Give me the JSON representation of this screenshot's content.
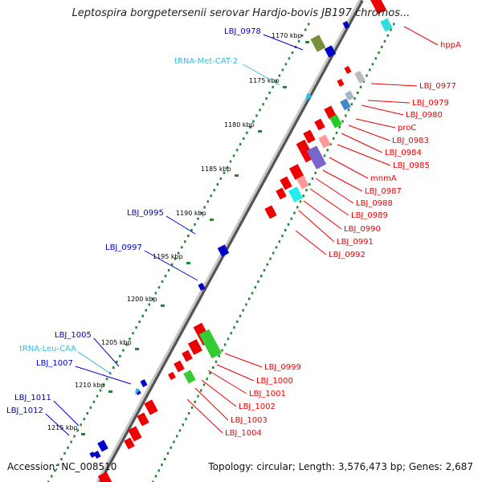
{
  "title": "Leptospira borgpetersenii serovar Hardjo-bovis JB197 chromos...",
  "footer": {
    "accession": "Accession: NC_008510",
    "summary": "Topology: circular; Length: 3,576,473 bp; Genes: 2,687"
  },
  "colors": {
    "backbone": "#999999",
    "forward_gene": "#ee0000",
    "reverse_gene": "#0000cc",
    "trna_label": "#33bbdd",
    "ruler": "#228833"
  },
  "ticks": [
    {
      "label": "1170 kbp"
    },
    {
      "label": "1175 kbp"
    },
    {
      "label": "1180 kbp"
    },
    {
      "label": "1185 kbp"
    },
    {
      "label": "1190 kbp"
    },
    {
      "label": "1195 kbp"
    },
    {
      "label": "1200 kbp"
    },
    {
      "label": "1205 kbp"
    },
    {
      "label": "1210 kbp"
    },
    {
      "label": "1215 kbp"
    }
  ],
  "left_labels": [
    {
      "text": "LBJ_0978",
      "kind": "gene"
    },
    {
      "text": "tRNA-Met-CAT-2",
      "kind": "trna"
    },
    {
      "text": "LBJ_0995",
      "kind": "gene"
    },
    {
      "text": "LBJ_0997",
      "kind": "gene"
    },
    {
      "text": "LBJ_1005",
      "kind": "gene"
    },
    {
      "text": "tRNA-Leu-CAA",
      "kind": "trna"
    },
    {
      "text": "LBJ_1007",
      "kind": "gene"
    },
    {
      "text": "LBJ_1011",
      "kind": "gene"
    },
    {
      "text": "LBJ_1012",
      "kind": "gene"
    }
  ],
  "right_labels": [
    {
      "text": "hppA"
    },
    {
      "text": "LBJ_0977"
    },
    {
      "text": "LBJ_0979"
    },
    {
      "text": "LBJ_0980"
    },
    {
      "text": "proC"
    },
    {
      "text": "LBJ_0983"
    },
    {
      "text": "LBJ_0984"
    },
    {
      "text": "LBJ_0985"
    },
    {
      "text": "mnmA"
    },
    {
      "text": "LBJ_0987"
    },
    {
      "text": "LBJ_0988"
    },
    {
      "text": "LBJ_0989"
    },
    {
      "text": "LBJ_0990"
    },
    {
      "text": "LBJ_0991"
    },
    {
      "text": "LBJ_0992"
    },
    {
      "text": "LBJ_0999"
    },
    {
      "text": "LBJ_1000"
    },
    {
      "text": "LBJ_1001"
    },
    {
      "text": "LBJ_1002"
    },
    {
      "text": "LBJ_1003"
    },
    {
      "text": "LBJ_1004"
    }
  ]
}
